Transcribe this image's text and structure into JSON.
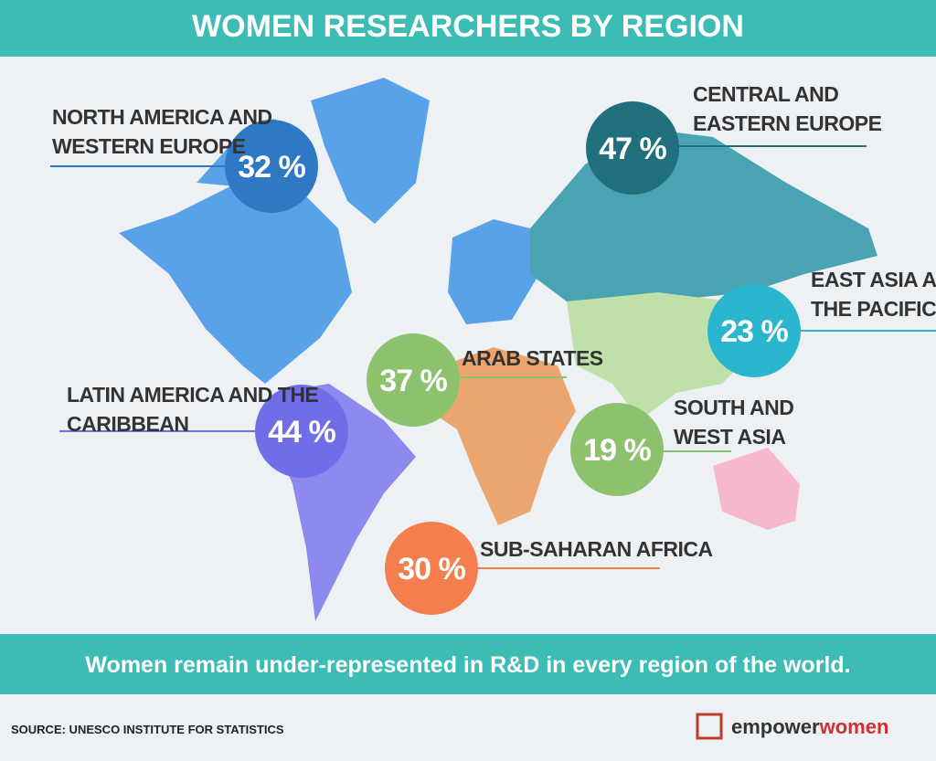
{
  "header": {
    "title": "WOMEN RESEARCHERS BY REGION"
  },
  "regions": [
    {
      "lines": [
        "NORTH AMERICA AND",
        "WESTERN EUROPE"
      ],
      "value_label": "32 %"
    },
    {
      "lines": [
        "CENTRAL AND",
        "EASTERN EUROPE"
      ],
      "value_label": "47 %"
    },
    {
      "lines": [
        "EAST ASIA AND",
        "THE PACIFIC"
      ],
      "value_label": "23 %"
    },
    {
      "lines": [
        "ARAB STATES"
      ],
      "value_label": "37 %"
    },
    {
      "lines": [
        "LATIN AMERICA AND THE",
        "CARIBBEAN"
      ],
      "value_label": "44 %"
    },
    {
      "lines": [
        "SOUTH AND",
        "WEST ASIA"
      ],
      "value_label": "19 %"
    },
    {
      "lines": [
        "SUB-SAHARAN AFRICA"
      ],
      "value_label": "30 %"
    }
  ],
  "footer": {
    "message": "Women remain under-represented in R&D in every region of the world.",
    "source": "SOURCE: UNESCO INSTITUTE FOR STATISTICS",
    "logo": {
      "part1": "empower",
      "part2": "women"
    }
  }
}
